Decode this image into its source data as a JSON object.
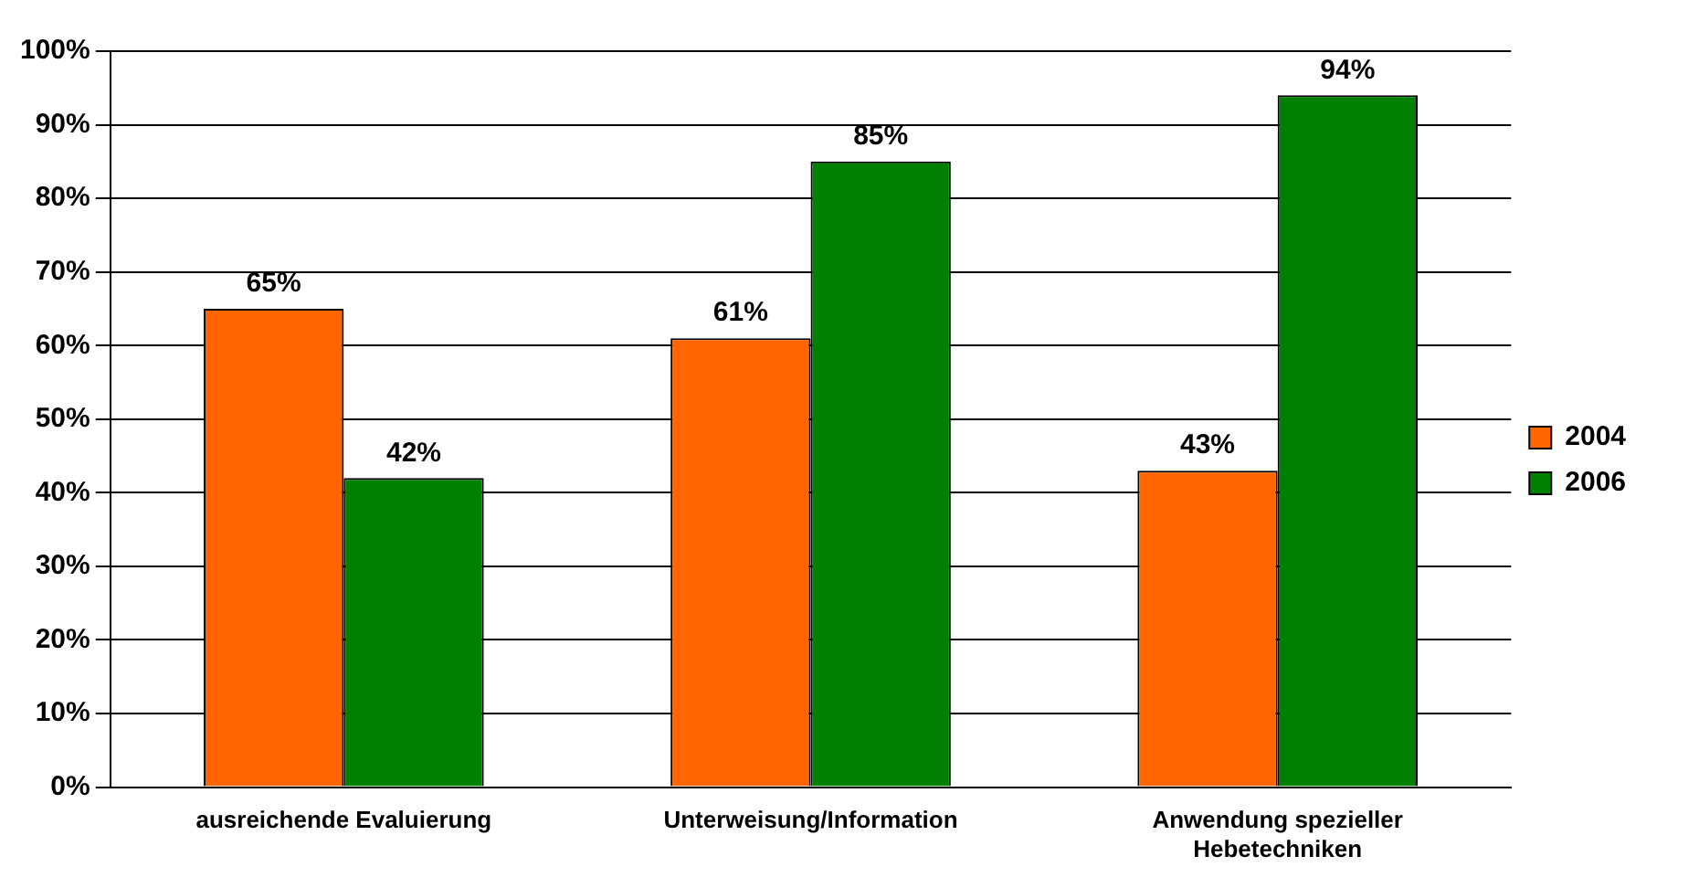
{
  "chart_data": {
    "type": "bar",
    "categories": [
      "ausreichende Evaluierung",
      "Unterweisung/Information",
      "Anwendung spezieller Hebetechniken"
    ],
    "series": [
      {
        "name": "2004",
        "color": "#ff6600",
        "values": [
          65,
          61,
          43
        ],
        "value_labels": [
          "65%",
          "61%",
          "43%"
        ]
      },
      {
        "name": "2006",
        "color": "#008000",
        "values": [
          42,
          85,
          94
        ],
        "value_labels": [
          "42%",
          "85%",
          "94%"
        ]
      }
    ],
    "ylim": [
      0,
      100
    ],
    "yticks": [
      {
        "value": 0,
        "label": "0%"
      },
      {
        "value": 10,
        "label": "10%"
      },
      {
        "value": 20,
        "label": "20%"
      },
      {
        "value": 30,
        "label": "30%"
      },
      {
        "value": 40,
        "label": "40%"
      },
      {
        "value": 50,
        "label": "50%"
      },
      {
        "value": 60,
        "label": "60%"
      },
      {
        "value": 70,
        "label": "70%"
      },
      {
        "value": 80,
        "label": "80%"
      },
      {
        "value": 90,
        "label": "90%"
      },
      {
        "value": 100,
        "label": "100%"
      }
    ],
    "grid": "y",
    "legend": "right"
  }
}
